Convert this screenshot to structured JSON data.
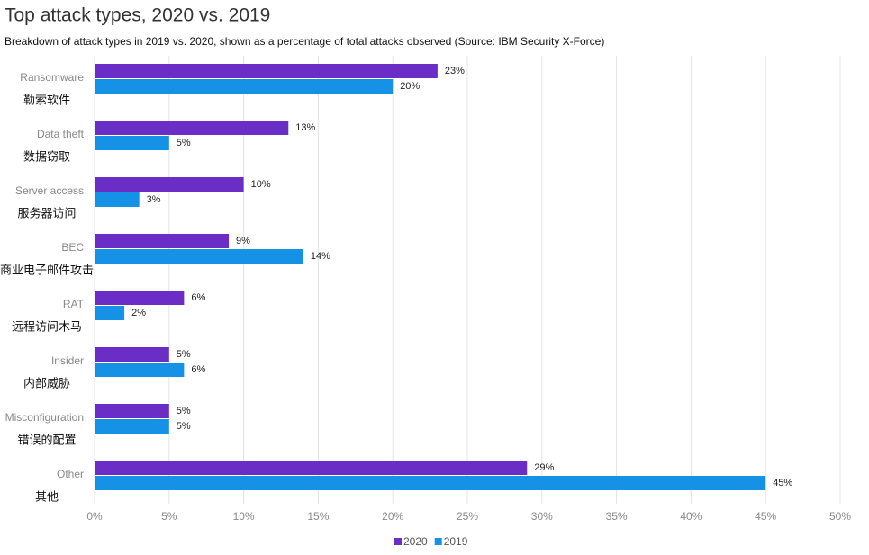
{
  "chart_data": {
    "type": "bar",
    "orientation": "horizontal",
    "title": "Top attack types, 2020 vs. 2019",
    "subtitle": "Breakdown of attack types in 2019 vs. 2020, shown as a percentage of total attacks observed (Source: IBM Security X-Force)",
    "categories": [
      "Ransomware",
      "Data theft",
      "Server access",
      "BEC",
      "RAT",
      "Insider",
      "Misconfiguration",
      "Other"
    ],
    "annotations": [
      "勒索软件",
      "数据窃取",
      "服务器访问",
      "商业电子邮件攻击",
      "远程访问木马",
      "内部威胁",
      "错误的配置",
      "其他"
    ],
    "series": [
      {
        "name": "2020",
        "color": "#6a2dc6",
        "values": [
          23,
          13,
          10,
          9,
          6,
          5,
          5,
          29
        ],
        "value_labels": [
          "23%",
          "13%",
          "10%",
          "9%",
          "6%",
          "5%",
          "5%",
          "29%"
        ]
      },
      {
        "name": "2019",
        "color": "#1592e6",
        "values": [
          20,
          5,
          3,
          14,
          2,
          6,
          5,
          45
        ],
        "value_labels": [
          "20%",
          "5%",
          "3%",
          "14%",
          "2%",
          "6%",
          "5%",
          "45%"
        ]
      }
    ],
    "xlim": [
      0,
      50
    ],
    "xticks": [
      {
        "value": 0,
        "label": "0%"
      },
      {
        "value": 5,
        "label": "5%"
      },
      {
        "value": 10,
        "label": "10%"
      },
      {
        "value": 15,
        "label": "15%"
      },
      {
        "value": 20,
        "label": "20%"
      },
      {
        "value": 25,
        "label": "25%"
      },
      {
        "value": 30,
        "label": "30%"
      },
      {
        "value": 35,
        "label": "35%"
      },
      {
        "value": 40,
        "label": "40%"
      },
      {
        "value": 45,
        "label": "45%"
      },
      {
        "value": 50,
        "label": "50%"
      }
    ],
    "grid": true,
    "legend": "bottom"
  }
}
